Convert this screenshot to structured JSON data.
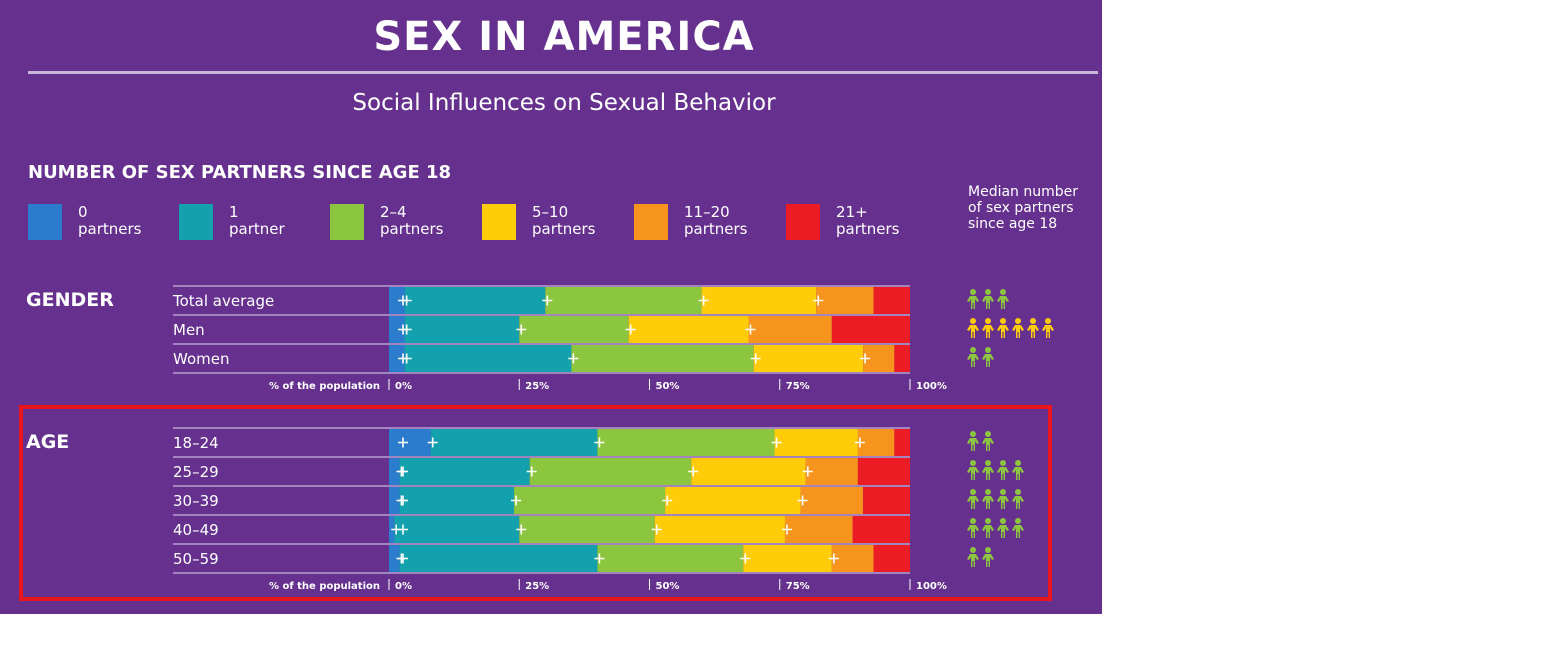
{
  "title": "SEX IN AMERICA",
  "subtitle": "Social Influences on Sexual Behavior",
  "section_title": "NUMBER OF SEX PARTNERS SINCE AGE 18",
  "legend": [
    {
      "line1": "0",
      "line2": "partners",
      "color": "#2b7ccc"
    },
    {
      "line1": "1",
      "line2": "partner",
      "color": "#13a1ad"
    },
    {
      "line1": "2–4",
      "line2": "partners",
      "color": "#8cc63f"
    },
    {
      "line1": "5–10",
      "line2": "partners",
      "color": "#ffcc0a"
    },
    {
      "line1": "11–20",
      "line2": "partners",
      "color": "#f7941d"
    },
    {
      "line1": "21+",
      "line2": "partners",
      "color": "#ec1c24"
    }
  ],
  "median_label": {
    "line1": "Median number",
    "line2": "of sex partners",
    "line3": "since age 18"
  },
  "axis_caption": "% of the population",
  "chart_data": [
    {
      "type": "bar",
      "stacked": true,
      "orientation": "horizontal",
      "group": "GENDER",
      "categories": [
        "Total average",
        "Men",
        "Women"
      ],
      "series": [
        {
          "name": "0 partners",
          "values": [
            3,
            3,
            3
          ]
        },
        {
          "name": "1 partner",
          "values": [
            27,
            22,
            32
          ]
        },
        {
          "name": "2–4 partners",
          "values": [
            30,
            21,
            35
          ]
        },
        {
          "name": "5–10 partners",
          "values": [
            22,
            23,
            21
          ]
        },
        {
          "name": "11–20 partners",
          "values": [
            11,
            16,
            6
          ]
        },
        {
          "name": "21+ partners",
          "values": [
            7,
            15,
            3
          ]
        }
      ],
      "median_partners": [
        3,
        6,
        2
      ],
      "ticks": [
        "0%",
        "25%",
        "50%",
        "75%",
        "100%"
      ],
      "xlim": [
        0,
        100
      ]
    },
    {
      "type": "bar",
      "stacked": true,
      "orientation": "horizontal",
      "group": "AGE",
      "categories": [
        "18–24",
        "25–29",
        "30–39",
        "40–49",
        "50–59"
      ],
      "series": [
        {
          "name": "0 partners",
          "values": [
            8,
            2,
            2,
            1,
            2
          ]
        },
        {
          "name": "1 partner",
          "values": [
            32,
            25,
            22,
            24,
            38
          ]
        },
        {
          "name": "2–4 partners",
          "values": [
            34,
            31,
            29,
            26,
            28
          ]
        },
        {
          "name": "5–10 partners",
          "values": [
            16,
            22,
            26,
            25,
            17
          ]
        },
        {
          "name": "11–20 partners",
          "values": [
            7,
            10,
            12,
            13,
            8
          ]
        },
        {
          "name": "21+ partners",
          "values": [
            3,
            10,
            9,
            11,
            7
          ]
        }
      ],
      "median_partners": [
        2,
        4,
        4,
        4,
        2
      ],
      "ticks": [
        "0%",
        "25%",
        "50%",
        "75%",
        "100%"
      ],
      "xlim": [
        0,
        100
      ]
    }
  ]
}
